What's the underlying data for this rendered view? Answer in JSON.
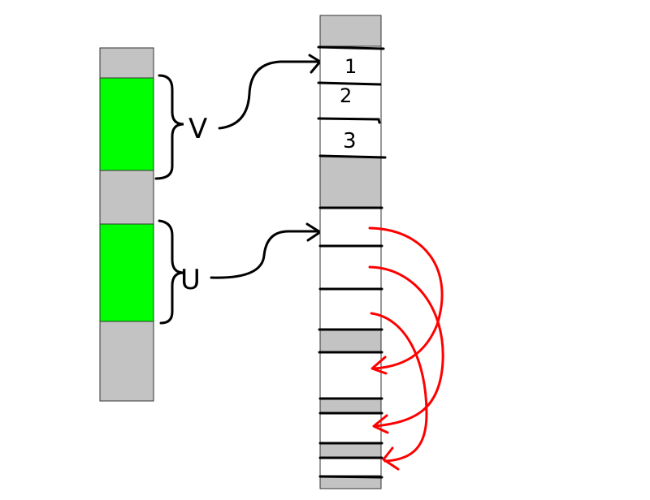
{
  "left_labels": {
    "v": "V",
    "u": "U"
  },
  "right_slot_labels": [
    "1",
    "2",
    "3"
  ],
  "colors": {
    "gray": "#c3c3c3",
    "green": "#00ff00",
    "white": "#ffffff",
    "ink": "#000000",
    "red_arrow": "#ff0000"
  }
}
